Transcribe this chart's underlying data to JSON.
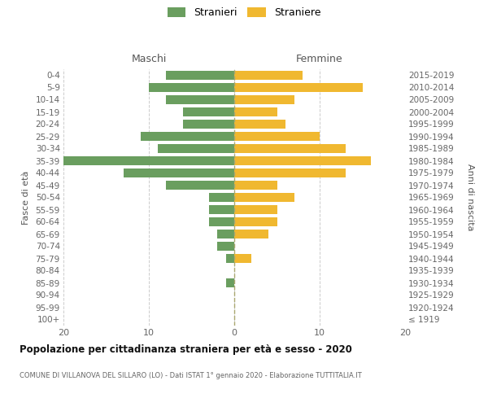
{
  "age_groups": [
    "100+",
    "95-99",
    "90-94",
    "85-89",
    "80-84",
    "75-79",
    "70-74",
    "65-69",
    "60-64",
    "55-59",
    "50-54",
    "45-49",
    "40-44",
    "35-39",
    "30-34",
    "25-29",
    "20-24",
    "15-19",
    "10-14",
    "5-9",
    "0-4"
  ],
  "birth_years": [
    "≤ 1919",
    "1920-1924",
    "1925-1929",
    "1930-1934",
    "1935-1939",
    "1940-1944",
    "1945-1949",
    "1950-1954",
    "1955-1959",
    "1960-1964",
    "1965-1969",
    "1970-1974",
    "1975-1979",
    "1980-1984",
    "1985-1989",
    "1990-1994",
    "1995-1999",
    "2000-2004",
    "2005-2009",
    "2010-2014",
    "2015-2019"
  ],
  "males": [
    0,
    0,
    0,
    1,
    0,
    1,
    2,
    2,
    3,
    3,
    3,
    8,
    13,
    20,
    9,
    11,
    6,
    6,
    8,
    10,
    8
  ],
  "females": [
    0,
    0,
    0,
    0,
    0,
    2,
    0,
    4,
    5,
    5,
    7,
    5,
    13,
    16,
    13,
    10,
    6,
    5,
    7,
    15,
    8
  ],
  "male_color": "#6a9e5f",
  "female_color": "#f0b830",
  "background_color": "#ffffff",
  "grid_color": "#cccccc",
  "title": "Popolazione per cittadinanza straniera per età e sesso - 2020",
  "subtitle": "COMUNE DI VILLANOVA DEL SILLARO (LO) - Dati ISTAT 1° gennaio 2020 - Elaborazione TUTTITALIA.IT",
  "xlabel_left": "Maschi",
  "xlabel_right": "Femmine",
  "ylabel": "Fasce di età",
  "ylabel_right": "Anni di nascita",
  "legend_male": "Stranieri",
  "legend_female": "Straniere",
  "xlim": 20,
  "xticks": [
    -20,
    -10,
    0,
    10,
    20
  ]
}
